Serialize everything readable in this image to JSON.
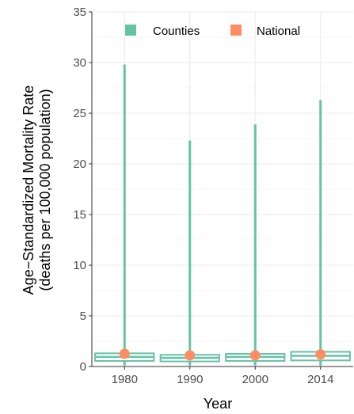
{
  "chart_data": {
    "type": "boxplot",
    "categories": [
      "1980",
      "1990",
      "2000",
      "2014"
    ],
    "ylim": [
      0,
      35
    ],
    "yticks": [
      0,
      5,
      10,
      15,
      20,
      25,
      30,
      35
    ],
    "xlabel": "Year",
    "ylabel_line1": "Age−Standardized Mortality Rate",
    "ylabel_line2": "(deaths per 100,000 population)",
    "legend": {
      "placement": "top",
      "entries": [
        {
          "label": "Counties",
          "color": "#66c2a5"
        },
        {
          "label": "National",
          "color": "#fc8d62"
        }
      ]
    },
    "series": [
      {
        "name": "Counties",
        "color": "#66c2a5",
        "boxes": [
          {
            "category": "1980",
            "min": 0.1,
            "q1": 0.55,
            "median": 0.95,
            "q3": 1.3,
            "max": 29.8
          },
          {
            "category": "1990",
            "min": 0.1,
            "q1": 0.5,
            "median": 0.85,
            "q3": 1.15,
            "max": 22.3
          },
          {
            "category": "2000",
            "min": 0.1,
            "q1": 0.55,
            "median": 0.95,
            "q3": 1.25,
            "max": 23.9
          },
          {
            "category": "2014",
            "min": 0.1,
            "q1": 0.6,
            "median": 1.05,
            "q3": 1.45,
            "max": 26.3
          }
        ]
      },
      {
        "name": "National",
        "color": "#fc8d62",
        "values": [
          1.25,
          1.1,
          1.1,
          1.2
        ]
      }
    ],
    "grid": true
  }
}
